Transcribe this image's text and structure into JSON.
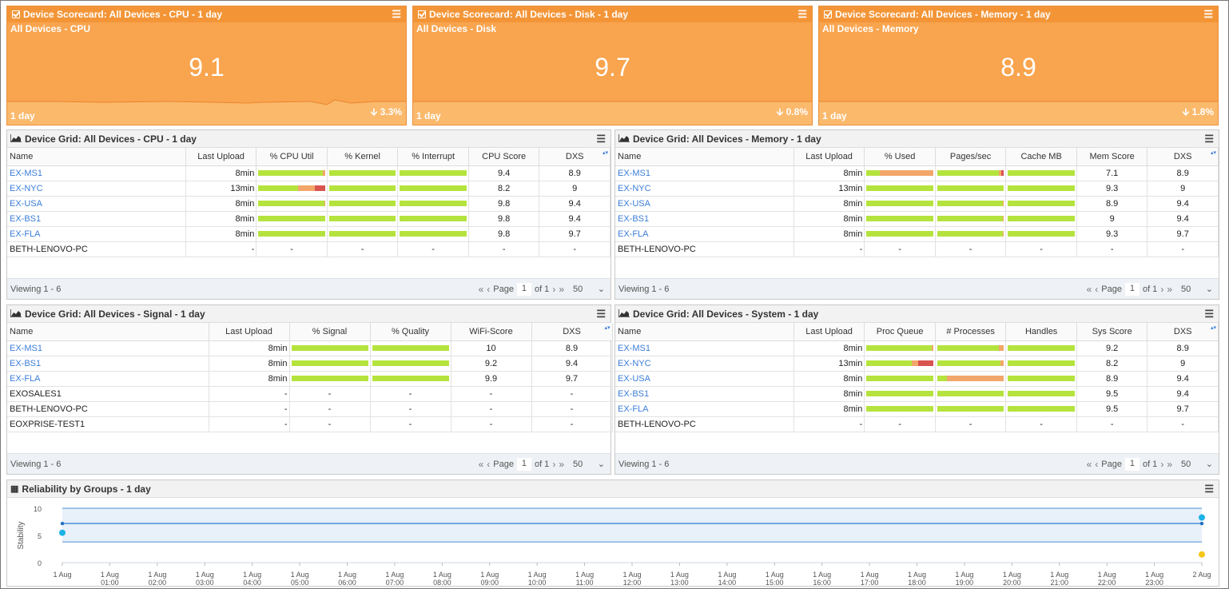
{
  "scorecards": [
    {
      "title": "Device Scorecard: All Devices - CPU - 1 day",
      "subtitle": "All Devices - CPU",
      "value": "9.1",
      "period": "1 day",
      "change": "3.3%"
    },
    {
      "title": "Device Scorecard: All Devices - Disk - 1 day",
      "subtitle": "All Devices - Disk",
      "value": "9.7",
      "period": "1 day",
      "change": "0.8%"
    },
    {
      "title": "Device Scorecard: All Devices - Memory - 1 day",
      "subtitle": "All Devices - Memory",
      "value": "8.9",
      "period": "1 day",
      "change": "1.8%"
    }
  ],
  "grids": {
    "cpu": {
      "title": "Device Grid: All Devices - CPU - 1 day",
      "columns": [
        "Name",
        "Last Upload",
        "% CPU Util",
        "% Kernel",
        "% Interrupt",
        "CPU Score",
        "DXS"
      ],
      "rows": [
        {
          "name": "EX-MS1",
          "upload": "8min",
          "score": "9.4",
          "dxs": "8.9"
        },
        {
          "name": "EX-NYC",
          "upload": "13min",
          "score": "8.2",
          "dxs": "9"
        },
        {
          "name": "EX-USA",
          "upload": "8min",
          "score": "9.8",
          "dxs": "9.4"
        },
        {
          "name": "EX-BS1",
          "upload": "8min",
          "score": "9.8",
          "dxs": "9.4"
        },
        {
          "name": "EX-FLA",
          "upload": "8min",
          "score": "9.8",
          "dxs": "9.7"
        },
        {
          "name": "BETH-LENOVO-PC",
          "upload": "-",
          "score": "-",
          "dxs": "-"
        }
      ],
      "viewing": "Viewing 1 - 6",
      "page_label": "Page",
      "page": "1",
      "of": "of 1",
      "per_page": "50"
    },
    "memory": {
      "title": "Device Grid: All Devices - Memory - 1 day",
      "columns": [
        "Name",
        "Last Upload",
        "% Used",
        "Pages/sec",
        "Cache MB",
        "Mem Score",
        "DXS"
      ],
      "rows": [
        {
          "name": "EX-MS1",
          "upload": "8min",
          "score": "7.1",
          "dxs": "8.9"
        },
        {
          "name": "EX-NYC",
          "upload": "13min",
          "score": "9.3",
          "dxs": "9"
        },
        {
          "name": "EX-USA",
          "upload": "8min",
          "score": "8.9",
          "dxs": "9.4"
        },
        {
          "name": "EX-BS1",
          "upload": "8min",
          "score": "9",
          "dxs": "9.4"
        },
        {
          "name": "EX-FLA",
          "upload": "8min",
          "score": "9.3",
          "dxs": "9.7"
        },
        {
          "name": "BETH-LENOVO-PC",
          "upload": "-",
          "score": "-",
          "dxs": "-"
        }
      ],
      "viewing": "Viewing 1 - 6",
      "page_label": "Page",
      "page": "1",
      "of": "of 1",
      "per_page": "50"
    },
    "signal": {
      "title": "Device Grid: All Devices - Signal - 1 day",
      "columns": [
        "Name",
        "Last Upload",
        "% Signal",
        "% Quality",
        "WiFi-Score",
        "DXS"
      ],
      "rows": [
        {
          "name": "EX-MS1",
          "upload": "8min",
          "score": "10",
          "dxs": "8.9"
        },
        {
          "name": "EX-BS1",
          "upload": "8min",
          "score": "9.2",
          "dxs": "9.4"
        },
        {
          "name": "EX-FLA",
          "upload": "8min",
          "score": "9.9",
          "dxs": "9.7"
        },
        {
          "name": "EXOSALES1",
          "upload": "-",
          "score": "-",
          "dxs": "-"
        },
        {
          "name": "BETH-LENOVO-PC",
          "upload": "-",
          "score": "-",
          "dxs": "-"
        },
        {
          "name": "EOXPRISE-TEST1",
          "upload": "-",
          "score": "-",
          "dxs": "-"
        }
      ],
      "viewing": "Viewing 1 - 6",
      "page_label": "Page",
      "page": "1",
      "of": "of 1",
      "per_page": "50"
    },
    "system": {
      "title": "Device Grid: All Devices - System - 1 day",
      "columns": [
        "Name",
        "Last Upload",
        "Proc Queue",
        "# Processes",
        "Handles",
        "Sys Score",
        "DXS"
      ],
      "rows": [
        {
          "name": "EX-MS1",
          "upload": "8min",
          "score": "9.2",
          "dxs": "8.9"
        },
        {
          "name": "EX-NYC",
          "upload": "13min",
          "score": "8.2",
          "dxs": "9"
        },
        {
          "name": "EX-USA",
          "upload": "8min",
          "score": "8.9",
          "dxs": "9.4"
        },
        {
          "name": "EX-BS1",
          "upload": "8min",
          "score": "9.5",
          "dxs": "9.4"
        },
        {
          "name": "EX-FLA",
          "upload": "8min",
          "score": "9.5",
          "dxs": "9.7"
        },
        {
          "name": "BETH-LENOVO-PC",
          "upload": "-",
          "score": "-",
          "dxs": "-"
        }
      ],
      "viewing": "Viewing 1 - 6",
      "page_label": "Page",
      "page": "1",
      "of": "of 1",
      "per_page": "50"
    }
  },
  "bar_levels": {
    "cpu": [
      [
        [
          0.97,
          0.03
        ],
        [
          1.0
        ],
        [
          1.0
        ]
      ],
      [
        [
          0.6,
          0.25,
          0.15
        ],
        [
          1.0
        ],
        [
          1.0
        ]
      ],
      [
        [
          0.99,
          0.01
        ],
        [
          1.0
        ],
        [
          1.0
        ]
      ],
      [
        [
          1.0
        ],
        [
          1.0
        ],
        [
          1.0
        ]
      ],
      [
        [
          1.0
        ],
        [
          1.0
        ],
        [
          1.0
        ]
      ]
    ],
    "memory": [
      [
        [
          0.2,
          0.8
        ],
        [
          0.92,
          0.04,
          0.04
        ],
        [
          1.0
        ]
      ],
      [
        [
          1.0
        ],
        [
          1.0
        ],
        [
          1.0
        ]
      ],
      [
        [
          1.0
        ],
        [
          0.98,
          0.02
        ],
        [
          1.0
        ]
      ],
      [
        [
          1.0
        ],
        [
          0.98,
          0.02
        ],
        [
          1.0
        ]
      ],
      [
        [
          1.0
        ],
        [
          0.98,
          0.02
        ],
        [
          1.0
        ]
      ]
    ],
    "signal": [
      [
        [
          1.0
        ],
        [
          1.0
        ]
      ],
      [
        [
          1.0
        ],
        [
          1.0
        ]
      ],
      [
        [
          1.0
        ],
        [
          1.0
        ]
      ]
    ],
    "system": [
      [
        [
          0.98,
          0.02
        ],
        [
          0.92,
          0.08
        ],
        [
          1.0
        ]
      ],
      [
        [
          0.68,
          0.1,
          0.22
        ],
        [
          0.95,
          0.05
        ],
        [
          1.0
        ]
      ],
      [
        [
          1.0
        ],
        [
          0.15,
          0.85
        ],
        [
          1.0
        ]
      ],
      [
        [
          1.0
        ],
        [
          1.0
        ],
        [
          1.0
        ]
      ],
      [
        [
          1.0
        ],
        [
          1.0
        ],
        [
          1.0
        ]
      ]
    ]
  },
  "colors": {
    "green": "#b5e33e",
    "orange": "#f2a66a",
    "red": "#d9534f",
    "scorecard": "#f9a44e",
    "link": "#3b7dd8"
  },
  "reliability": {
    "title": "Reliability by Groups - 1 day",
    "chart_data": {
      "type": "line",
      "ylabel": "Stability",
      "ylim": [
        0,
        10
      ],
      "yticks": [
        0,
        5,
        10
      ],
      "xticks": [
        "1 Aug",
        "1 Aug 01:00",
        "1 Aug 02:00",
        "1 Aug 03:00",
        "1 Aug 04:00",
        "1 Aug 05:00",
        "1 Aug 06:00",
        "1 Aug 07:00",
        "1 Aug 08:00",
        "1 Aug 09:00",
        "1 Aug 10:00",
        "1 Aug 11:00",
        "1 Aug 12:00",
        "1 Aug 13:00",
        "1 Aug 14:00",
        "1 Aug 15:00",
        "1 Aug 16:00",
        "1 Aug 17:00",
        "1 Aug 18:00",
        "1 Aug 19:00",
        "1 Aug 20:00",
        "1 Aug 21:00",
        "1 Aug 22:00",
        "1 Aug 23:00",
        "2 Aug"
      ],
      "band": {
        "upper": 10,
        "mean": 7.2,
        "lower": 3.8
      },
      "points": [
        {
          "x": 0,
          "y": 7.2,
          "color": "#1f6fc0",
          "size": "small"
        },
        {
          "x": 0,
          "y": 5.5,
          "color": "#1bb2e6",
          "size": "large"
        },
        {
          "x": 24,
          "y": 8.3,
          "color": "#1bb2e6",
          "size": "large"
        },
        {
          "x": 24,
          "y": 7.2,
          "color": "#1f6fc0",
          "size": "small"
        },
        {
          "x": 24,
          "y": 1.5,
          "color": "#f5c518",
          "size": "large"
        }
      ]
    }
  }
}
